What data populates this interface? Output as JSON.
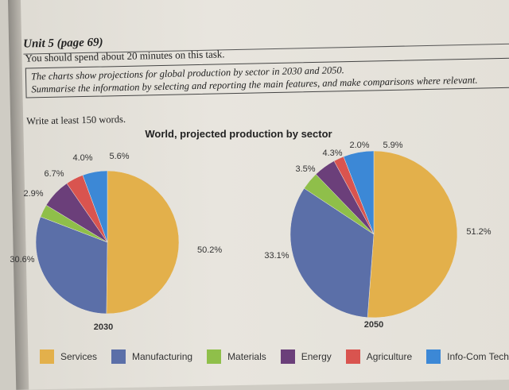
{
  "header": {
    "unit": "Unit 5 (page 69)",
    "task": "You should spend about 20 minutes on this task.",
    "prompt_line1": "The charts show projections for global production by sector in 2030 and 2050.",
    "prompt_line2": "Summarise the information by selecting and reporting the main features, and make comparisons where relevant.",
    "write": "Write at least 150 words."
  },
  "chart_data": {
    "type": "pie",
    "title": "World, projected production by sector",
    "categories": [
      "Services",
      "Manufacturing",
      "Materials",
      "Energy",
      "Agriculture",
      "Info-Com Tech"
    ],
    "colors": [
      "#e3b04b",
      "#5b6fa8",
      "#8fbf4a",
      "#6b3f7a",
      "#d9544f",
      "#3c88d6"
    ],
    "series": [
      {
        "name": "2030",
        "values": [
          50.2,
          30.6,
          2.9,
          6.7,
          4.0,
          5.6
        ]
      },
      {
        "name": "2050",
        "values": [
          51.2,
          33.1,
          3.5,
          4.3,
          2.0,
          5.9
        ]
      }
    ],
    "labels": {
      "2030": [
        "50.2%",
        "30.6%",
        "2.9%",
        "6.7%",
        "4.0%",
        "5.6%"
      ],
      "2050": [
        "51.2%",
        "33.1%",
        "3.5%",
        "4.3%",
        "2.0%",
        "5.9%"
      ]
    }
  }
}
